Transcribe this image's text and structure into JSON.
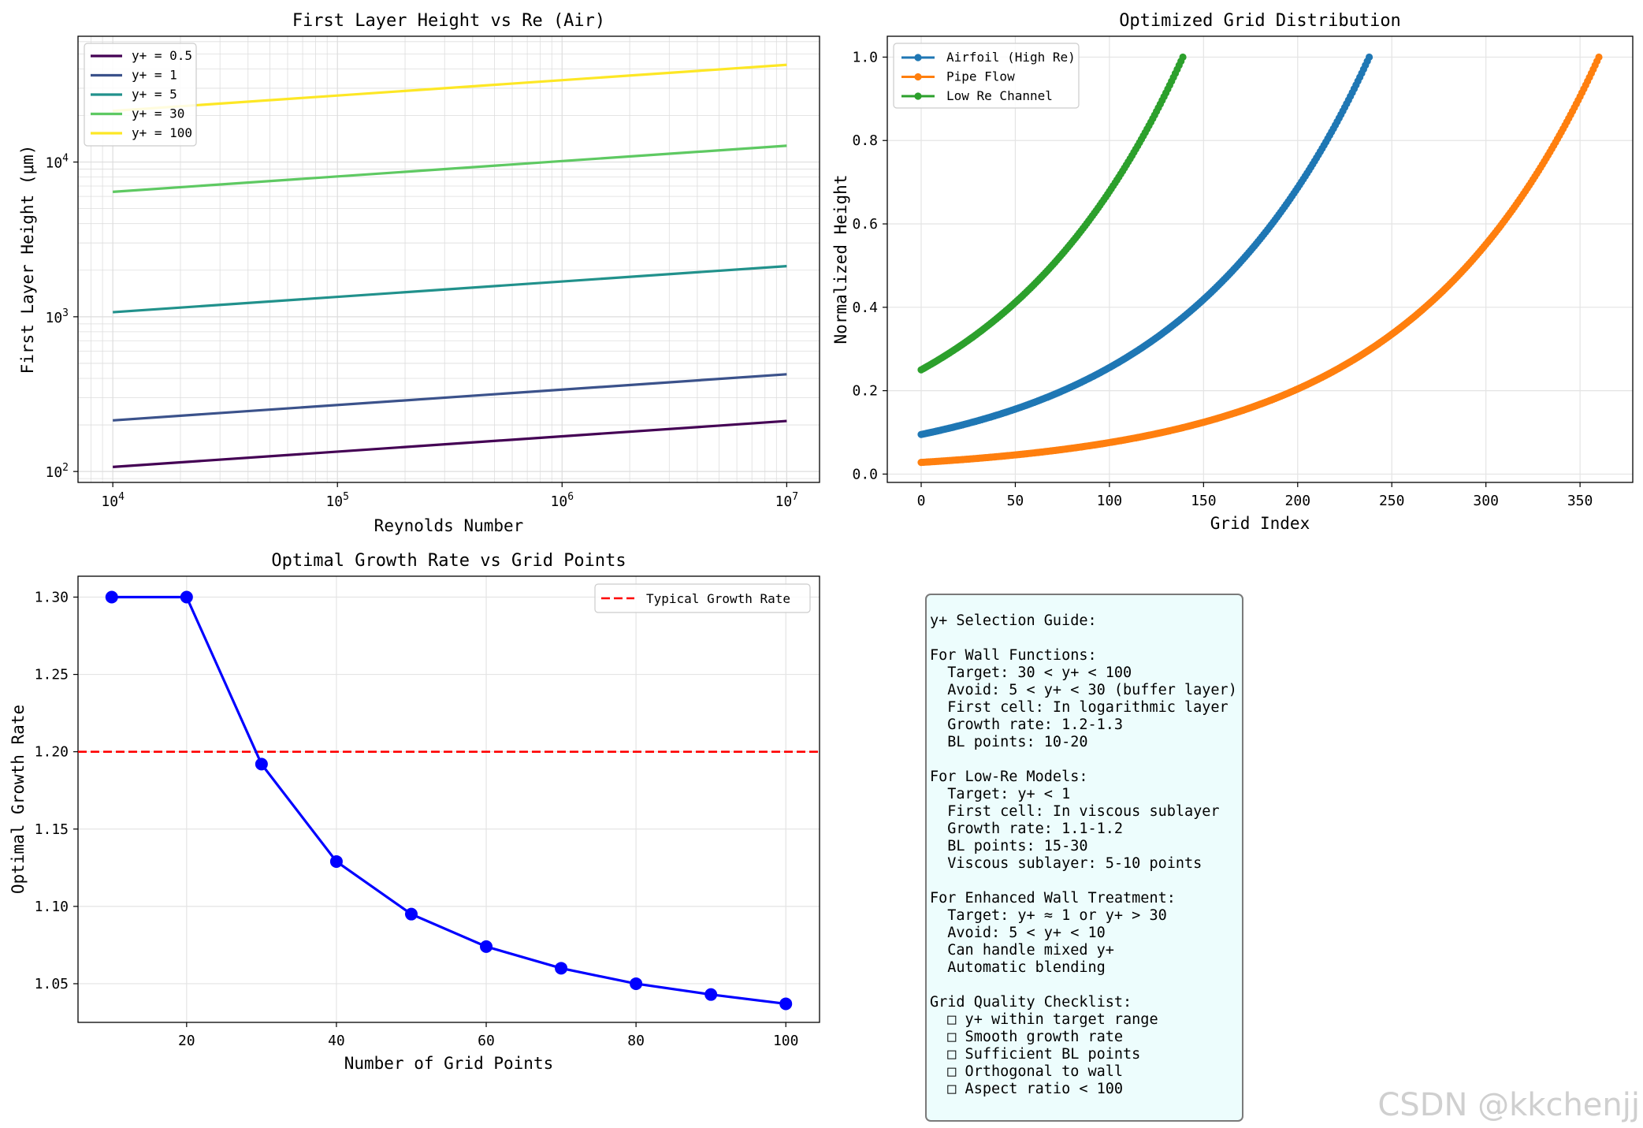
{
  "chart_data": [
    {
      "type": "line",
      "title": "First Layer Height vs Re (Air)",
      "xlabel": "Reynolds Number",
      "ylabel": "First Layer Height (μm)",
      "xscale": "log",
      "yscale": "log",
      "xlim": [
        7000,
        14000000
      ],
      "ylim": [
        85,
        65000
      ],
      "x_ticks": [
        10000,
        100000,
        1000000,
        10000000
      ],
      "x_tick_labels": [
        [
          "10",
          "4"
        ],
        [
          "10",
          "5"
        ],
        [
          "10",
          "6"
        ],
        [
          "10",
          "7"
        ]
      ],
      "y_ticks": [
        100,
        1000,
        10000
      ],
      "y_tick_labels": [
        [
          "10",
          "2"
        ],
        [
          "10",
          "3"
        ],
        [
          "10",
          "4"
        ]
      ],
      "grid": true,
      "legend_position": "top-left",
      "x": [
        10000,
        10000000
      ],
      "series": [
        {
          "name": "y+ = 0.5",
          "color": "#440154",
          "values": [
            107,
            212
          ]
        },
        {
          "name": "y+ = 1",
          "color": "#3b528b",
          "values": [
            214,
            425
          ]
        },
        {
          "name": "y+ = 5",
          "color": "#21918c",
          "values": [
            1070,
            2125
          ]
        },
        {
          "name": "y+ = 30",
          "color": "#5ec962",
          "values": [
            6420,
            12750
          ]
        },
        {
          "name": "y+ = 100",
          "color": "#fde725",
          "values": [
            21400,
            42500
          ]
        }
      ]
    },
    {
      "type": "line",
      "title": "Optimized Grid Distribution",
      "xlabel": "Grid Index",
      "ylabel": "Normalized Height",
      "xlim": [
        -18,
        378
      ],
      "ylim": [
        -0.02,
        1.05
      ],
      "x_ticks": [
        0,
        50,
        100,
        150,
        200,
        250,
        300,
        350
      ],
      "y_ticks": [
        0.0,
        0.2,
        0.4,
        0.6,
        0.8,
        1.0
      ],
      "y_tick_labels": [
        "0.0",
        "0.2",
        "0.4",
        "0.6",
        "0.8",
        "1.0"
      ],
      "grid": true,
      "legend_position": "top-left",
      "marker": "circle",
      "series": [
        {
          "name": "Airfoil (High Re)",
          "color": "#1f77b4",
          "n_points": 239,
          "y_start": 0.095,
          "y_end": 1.0
        },
        {
          "name": "Pipe Flow",
          "color": "#ff7f0e",
          "n_points": 361,
          "y_start": 0.028,
          "y_end": 1.0
        },
        {
          "name": "Low Re Channel",
          "color": "#2ca02c",
          "n_points": 140,
          "y_start": 0.25,
          "y_end": 1.0
        }
      ]
    },
    {
      "type": "line",
      "title": "Optimal Growth Rate vs Grid Points",
      "xlabel": "Number of Grid Points",
      "ylabel": "Optimal Growth Rate",
      "xlim": [
        5.5,
        104.5
      ],
      "ylim": [
        1.025,
        1.3135
      ],
      "x_ticks": [
        20,
        40,
        60,
        80,
        100
      ],
      "y_ticks": [
        1.05,
        1.1,
        1.15,
        1.2,
        1.25,
        1.3
      ],
      "y_tick_labels": [
        "1.05",
        "1.10",
        "1.15",
        "1.20",
        "1.25",
        "1.30"
      ],
      "grid": true,
      "legend_position": "top-right",
      "series": [
        {
          "color": "#0000ff",
          "marker": "circle",
          "x": [
            10,
            20,
            30,
            40,
            50,
            60,
            70,
            80,
            90,
            100
          ],
          "values": [
            1.3,
            1.3,
            1.192,
            1.129,
            1.095,
            1.074,
            1.06,
            1.05,
            1.043,
            1.037
          ]
        },
        {
          "name": "Typical Growth Rate",
          "color": "#ff0000",
          "style": "dashed",
          "y_const": 1.2
        }
      ]
    }
  ],
  "guide": {
    "lines": [
      "y+ Selection Guide:",
      "",
      "For Wall Functions:",
      "  Target: 30 < y+ < 100",
      "  Avoid: 5 < y+ < 30 (buffer layer)",
      "  First cell: In logarithmic layer",
      "  Growth rate: 1.2-1.3",
      "  BL points: 10-20",
      "",
      "For Low-Re Models:",
      "  Target: y+ < 1",
      "  First cell: In viscous sublayer",
      "  Growth rate: 1.1-1.2",
      "  BL points: 15-30",
      "  Viscous sublayer: 5-10 points",
      "",
      "For Enhanced Wall Treatment:",
      "  Target: y+ ≈ 1 or y+ > 30",
      "  Avoid: 5 < y+ < 10",
      "  Can handle mixed y+",
      "  Automatic blending",
      "",
      "Grid Quality Checklist:",
      "  □ y+ within target range",
      "  □ Smooth growth rate",
      "  □ Sufficient BL points",
      "  □ Orthogonal to wall",
      "  □ Aspect ratio < 100"
    ]
  },
  "watermark": "CSDN @kkchenjj"
}
